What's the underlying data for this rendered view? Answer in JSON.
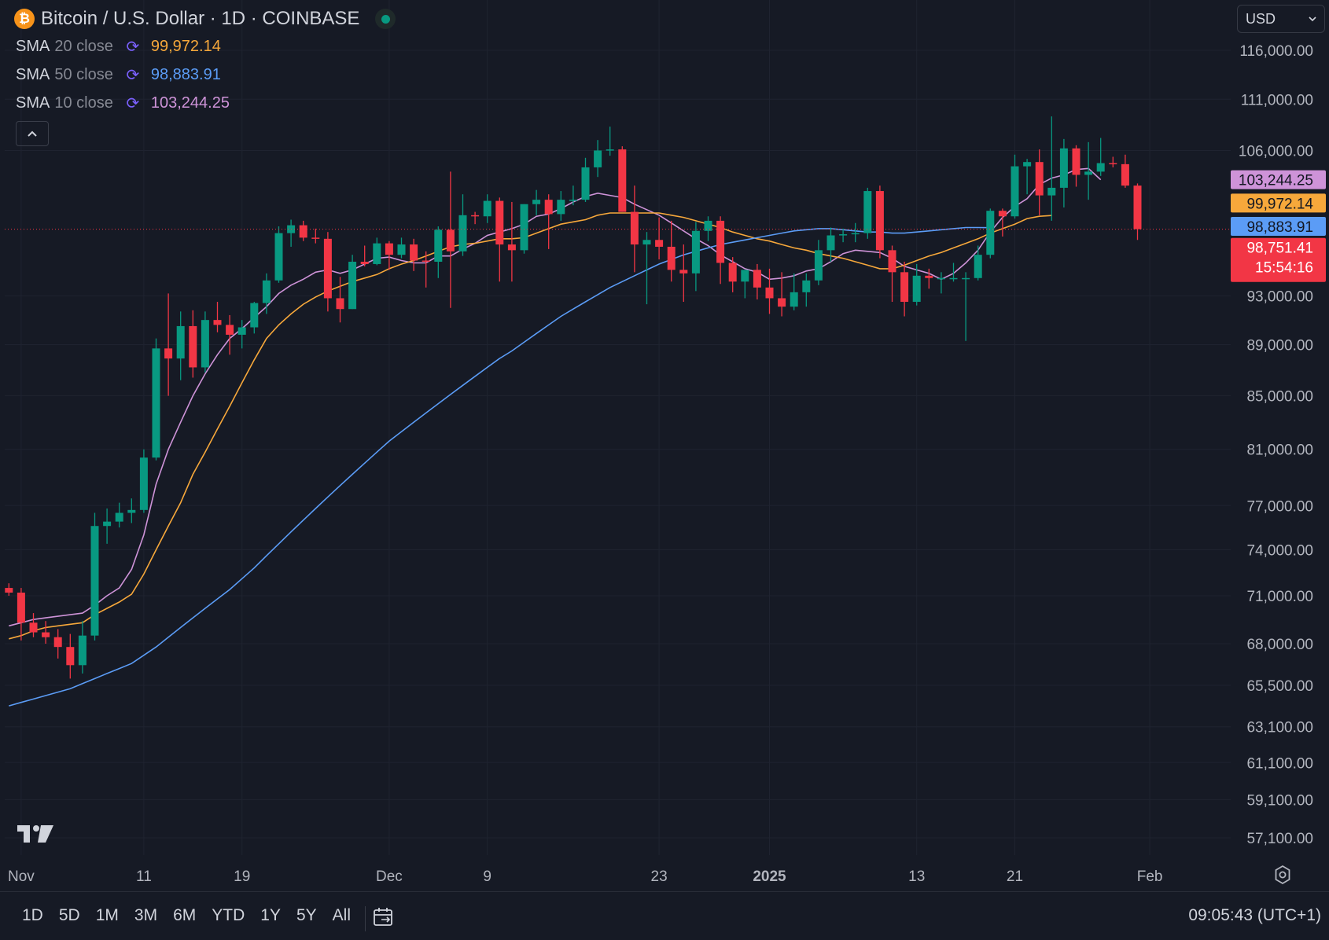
{
  "header": {
    "symbol_icon": "bitcoin-icon",
    "title": "Bitcoin / U.S. Dollar · 1D · COINBASE",
    "status_icon": "market-open-dot"
  },
  "legend": [
    {
      "name": "SMA",
      "params": "20 close",
      "value": "99,972.14",
      "color": "#f7a83b"
    },
    {
      "name": "SMA",
      "params": "50 close",
      "value": "98,883.91",
      "color": "#5b9cf6"
    },
    {
      "name": "SMA",
      "params": "10 close",
      "value": "103,244.25",
      "color": "#ce93d8"
    }
  ],
  "collapse_icon": "chevron-up-icon",
  "currency": {
    "label": "USD",
    "icon": "chevron-down-icon"
  },
  "bottom_bar": {
    "ranges": [
      "1D",
      "5D",
      "1M",
      "3M",
      "6M",
      "YTD",
      "1Y",
      "5Y",
      "All"
    ],
    "calendar_icon": "goto-date-icon",
    "time": "09:05:43 (UTC+1)"
  },
  "settings_icon": "gear-icon",
  "chart_data": {
    "type": "candlestick",
    "title": "Bitcoin / U.S. Dollar · 1D · COINBASE",
    "y_axis_position": "right",
    "y_scale": "log",
    "ylim": [
      55700,
      121000
    ],
    "y_ticks": [
      "116,000.00",
      "111,000.00",
      "106,000.00",
      "93,000.00",
      "89,000.00",
      "85,000.00",
      "81,000.00",
      "77,000.00",
      "74,000.00",
      "71,000.00",
      "68,000.00",
      "65,500.00",
      "63,100.00",
      "61,100.00",
      "59,100.00",
      "57,100.00"
    ],
    "x_labels": [
      {
        "label": "Nov",
        "index": 1
      },
      {
        "label": "11",
        "index": 11
      },
      {
        "label": "19",
        "index": 19
      },
      {
        "label": "Dec",
        "index": 31
      },
      {
        "label": "9",
        "index": 39
      },
      {
        "label": "23",
        "index": 53
      },
      {
        "label": "2025",
        "index": 62,
        "bold": true
      },
      {
        "label": "13",
        "index": 74
      },
      {
        "label": "21",
        "index": 82
      },
      {
        "label": "Feb",
        "index": 93
      }
    ],
    "candles": [
      {
        "o": 71500,
        "h": 71800,
        "l": 71000,
        "c": 71200
      },
      {
        "o": 71200,
        "h": 71500,
        "l": 68200,
        "c": 69300
      },
      {
        "o": 69300,
        "h": 69900,
        "l": 68400,
        "c": 68700
      },
      {
        "o": 68700,
        "h": 69400,
        "l": 68000,
        "c": 68400
      },
      {
        "o": 68400,
        "h": 68900,
        "l": 67100,
        "c": 67800
      },
      {
        "o": 67800,
        "h": 68600,
        "l": 65900,
        "c": 66700
      },
      {
        "o": 66700,
        "h": 69400,
        "l": 66200,
        "c": 68500
      },
      {
        "o": 68500,
        "h": 76500,
        "l": 68200,
        "c": 75600
      },
      {
        "o": 75600,
        "h": 76800,
        "l": 74400,
        "c": 75900
      },
      {
        "o": 75900,
        "h": 77200,
        "l": 75500,
        "c": 76500
      },
      {
        "o": 76500,
        "h": 77500,
        "l": 75800,
        "c": 76700
      },
      {
        "o": 76700,
        "h": 81000,
        "l": 76500,
        "c": 80400
      },
      {
        "o": 80400,
        "h": 89500,
        "l": 80200,
        "c": 88700
      },
      {
        "o": 88700,
        "h": 93200,
        "l": 85000,
        "c": 87900
      },
      {
        "o": 87900,
        "h": 91700,
        "l": 86200,
        "c": 90500
      },
      {
        "o": 90500,
        "h": 91800,
        "l": 86400,
        "c": 87200
      },
      {
        "o": 87200,
        "h": 91700,
        "l": 86800,
        "c": 91000
      },
      {
        "o": 91000,
        "h": 92500,
        "l": 90000,
        "c": 90600
      },
      {
        "o": 90600,
        "h": 91400,
        "l": 88200,
        "c": 89800
      },
      {
        "o": 89800,
        "h": 91000,
        "l": 88700,
        "c": 90400
      },
      {
        "o": 90400,
        "h": 92500,
        "l": 89900,
        "c": 92400
      },
      {
        "o": 92400,
        "h": 94900,
        "l": 91500,
        "c": 94300
      },
      {
        "o": 94300,
        "h": 99000,
        "l": 94100,
        "c": 98400
      },
      {
        "o": 98400,
        "h": 99600,
        "l": 97200,
        "c": 99100
      },
      {
        "o": 99100,
        "h": 99500,
        "l": 97700,
        "c": 98000
      },
      {
        "o": 98000,
        "h": 98800,
        "l": 97500,
        "c": 97900
      },
      {
        "o": 97900,
        "h": 98500,
        "l": 91700,
        "c": 92800
      },
      {
        "o": 92800,
        "h": 94600,
        "l": 90800,
        "c": 91900
      },
      {
        "o": 91900,
        "h": 96500,
        "l": 91900,
        "c": 95900
      },
      {
        "o": 95900,
        "h": 97300,
        "l": 95500,
        "c": 95700
      },
      {
        "o": 95700,
        "h": 98000,
        "l": 95600,
        "c": 97500
      },
      {
        "o": 97500,
        "h": 97700,
        "l": 95200,
        "c": 96500
      },
      {
        "o": 96500,
        "h": 98000,
        "l": 96200,
        "c": 97400
      },
      {
        "o": 97400,
        "h": 97900,
        "l": 95100,
        "c": 96000
      },
      {
        "o": 96000,
        "h": 96800,
        "l": 93700,
        "c": 95900
      },
      {
        "o": 95900,
        "h": 99000,
        "l": 94500,
        "c": 98700
      },
      {
        "o": 98700,
        "h": 104000,
        "l": 92000,
        "c": 96800
      },
      {
        "o": 96800,
        "h": 101900,
        "l": 96400,
        "c": 100000
      },
      {
        "o": 100000,
        "h": 100300,
        "l": 99200,
        "c": 99900
      },
      {
        "o": 99900,
        "h": 101900,
        "l": 99300,
        "c": 101300
      },
      {
        "o": 101300,
        "h": 101600,
        "l": 94200,
        "c": 97400
      },
      {
        "o": 97400,
        "h": 101200,
        "l": 94200,
        "c": 96900
      },
      {
        "o": 96900,
        "h": 101000,
        "l": 96600,
        "c": 101000
      },
      {
        "o": 101000,
        "h": 102300,
        "l": 100000,
        "c": 101400
      },
      {
        "o": 101400,
        "h": 101900,
        "l": 97000,
        "c": 100100
      },
      {
        "o": 100100,
        "h": 102200,
        "l": 99500,
        "c": 101400
      },
      {
        "o": 101400,
        "h": 102700,
        "l": 100900,
        "c": 101400
      },
      {
        "o": 101400,
        "h": 105300,
        "l": 101200,
        "c": 104400
      },
      {
        "o": 104400,
        "h": 107000,
        "l": 103500,
        "c": 106000
      },
      {
        "o": 106000,
        "h": 108300,
        "l": 105500,
        "c": 106100
      },
      {
        "o": 106100,
        "h": 106400,
        "l": 100300,
        "c": 100300
      },
      {
        "o": 100300,
        "h": 102700,
        "l": 95000,
        "c": 97400
      },
      {
        "o": 97400,
        "h": 98500,
        "l": 92300,
        "c": 97800
      },
      {
        "o": 97800,
        "h": 99800,
        "l": 96100,
        "c": 97200
      },
      {
        "o": 97200,
        "h": 99500,
        "l": 94200,
        "c": 95200
      },
      {
        "o": 95200,
        "h": 97400,
        "l": 92500,
        "c": 94900
      },
      {
        "o": 94900,
        "h": 99400,
        "l": 93400,
        "c": 98600
      },
      {
        "o": 98600,
        "h": 99900,
        "l": 97700,
        "c": 99500
      },
      {
        "o": 99500,
        "h": 99900,
        "l": 94000,
        "c": 95800
      },
      {
        "o": 95800,
        "h": 96300,
        "l": 93300,
        "c": 94200
      },
      {
        "o": 94200,
        "h": 95200,
        "l": 92800,
        "c": 95200
      },
      {
        "o": 95200,
        "h": 95700,
        "l": 92700,
        "c": 93700
      },
      {
        "o": 93700,
        "h": 95300,
        "l": 91500,
        "c": 92800
      },
      {
        "o": 92800,
        "h": 95000,
        "l": 91300,
        "c": 92100
      },
      {
        "o": 92100,
        "h": 94900,
        "l": 91800,
        "c": 93300
      },
      {
        "o": 93300,
        "h": 94900,
        "l": 92100,
        "c": 94300
      },
      {
        "o": 94300,
        "h": 97800,
        "l": 93900,
        "c": 96900
      },
      {
        "o": 96900,
        "h": 98900,
        "l": 95900,
        "c": 98200
      },
      {
        "o": 98200,
        "h": 98800,
        "l": 97600,
        "c": 98300
      },
      {
        "o": 98300,
        "h": 99300,
        "l": 97600,
        "c": 98400
      },
      {
        "o": 98400,
        "h": 102500,
        "l": 97900,
        "c": 102200
      },
      {
        "o": 102200,
        "h": 102700,
        "l": 96200,
        "c": 96900
      },
      {
        "o": 96900,
        "h": 97300,
        "l": 92500,
        "c": 95000
      },
      {
        "o": 95000,
        "h": 95900,
        "l": 91300,
        "c": 92500
      },
      {
        "o": 92500,
        "h": 95700,
        "l": 92200,
        "c": 94700
      },
      {
        "o": 94700,
        "h": 95300,
        "l": 93600,
        "c": 94500
      },
      {
        "o": 94500,
        "h": 95000,
        "l": 93200,
        "c": 94500
      },
      {
        "o": 94500,
        "h": 95800,
        "l": 94200,
        "c": 94500
      },
      {
        "o": 94500,
        "h": 95000,
        "l": 89300,
        "c": 94500
      },
      {
        "o": 94500,
        "h": 97300,
        "l": 94300,
        "c": 96500
      },
      {
        "o": 96500,
        "h": 100600,
        "l": 96200,
        "c": 100400
      },
      {
        "o": 100400,
        "h": 100600,
        "l": 98100,
        "c": 99900
      },
      {
        "o": 99900,
        "h": 105600,
        "l": 99700,
        "c": 104500
      },
      {
        "o": 104500,
        "h": 105200,
        "l": 101900,
        "c": 104900
      },
      {
        "o": 104900,
        "h": 106100,
        "l": 100000,
        "c": 101800
      },
      {
        "o": 101800,
        "h": 109300,
        "l": 99500,
        "c": 102500
      },
      {
        "o": 102500,
        "h": 107100,
        "l": 100700,
        "c": 106200
      },
      {
        "o": 106200,
        "h": 106500,
        "l": 102600,
        "c": 103700
      },
      {
        "o": 103700,
        "h": 106800,
        "l": 101400,
        "c": 104000
      },
      {
        "o": 104000,
        "h": 107200,
        "l": 103600,
        "c": 104800
      },
      {
        "o": 104800,
        "h": 105400,
        "l": 104400,
        "c": 104700
      },
      {
        "o": 104700,
        "h": 105600,
        "l": 102500,
        "c": 102700
      },
      {
        "o": 102700,
        "h": 102900,
        "l": 97800,
        "c": 98751.41
      }
    ],
    "series": [
      {
        "name": "SMA 10 close",
        "color": "#ce93d8",
        "start_index": 0,
        "values": [
          69100,
          69300,
          69500,
          69600,
          69700,
          69800,
          69900,
          70400,
          71000,
          71500,
          72700,
          75000,
          78500,
          81000,
          83000,
          85000,
          86700,
          88200,
          89500,
          90300,
          91200,
          92100,
          93200,
          93900,
          94400,
          95000,
          95200,
          94900,
          95200,
          95700,
          96200,
          96300,
          96000,
          95800,
          95800,
          96400,
          96400,
          97000,
          97500,
          98200,
          98500,
          98800,
          99200,
          99900,
          100100,
          100600,
          101200,
          101700,
          102000,
          101800,
          101600,
          101000,
          100500,
          100000,
          99300,
          98600,
          97900,
          97300,
          96500,
          95900,
          95300,
          95000,
          94400,
          94500,
          94700,
          95100,
          95300,
          95900,
          96600,
          96900,
          96800,
          96700,
          96200,
          95500,
          95200,
          94900,
          94400,
          94900,
          95800,
          96900,
          98500,
          99800,
          100800,
          101500,
          102800,
          103400,
          103700,
          104200,
          104300,
          103244.25
        ]
      },
      {
        "name": "SMA 20 close",
        "color": "#f7a83b",
        "start_index": 0,
        "values": [
          68300,
          68500,
          68800,
          69000,
          69100,
          69200,
          69300,
          69800,
          70200,
          70600,
          71100,
          72400,
          74000,
          75600,
          77200,
          79200,
          80800,
          82500,
          84200,
          86000,
          87800,
          89500,
          90600,
          91500,
          92300,
          92900,
          93400,
          93800,
          94200,
          94500,
          94800,
          95300,
          95700,
          96000,
          96400,
          96800,
          97200,
          97400,
          97500,
          97700,
          97900,
          97900,
          98000,
          98400,
          98800,
          99200,
          99400,
          99600,
          100000,
          100200,
          100200,
          100200,
          100200,
          100200,
          100000,
          99800,
          99500,
          99200,
          98900,
          98500,
          98200,
          97900,
          97700,
          97400,
          97100,
          96900,
          96600,
          96400,
          96200,
          95900,
          95600,
          95300,
          95300,
          95600,
          96000,
          96400,
          96700,
          97100,
          97500,
          97900,
          98400,
          98800,
          99200,
          99700,
          99900,
          99972.14
        ]
      },
      {
        "name": "SMA 50 close",
        "color": "#5b9cf6",
        "start_index": 0,
        "values": [
          64300,
          64500,
          64700,
          64900,
          65100,
          65300,
          65600,
          65900,
          66200,
          66500,
          66800,
          67300,
          67800,
          68400,
          69000,
          69600,
          70200,
          70800,
          71400,
          72100,
          72800,
          73600,
          74400,
          75200,
          76000,
          76800,
          77600,
          78400,
          79200,
          80000,
          80800,
          81600,
          82300,
          83000,
          83700,
          84400,
          85100,
          85800,
          86500,
          87200,
          87900,
          88500,
          89200,
          89900,
          90600,
          91300,
          91900,
          92500,
          93100,
          93700,
          94200,
          94700,
          95200,
          95700,
          96100,
          96500,
          96800,
          97100,
          97400,
          97600,
          97800,
          98000,
          98200,
          98400,
          98600,
          98700,
          98800,
          98800,
          98700,
          98600,
          98500,
          98500,
          98400,
          98400,
          98500,
          98600,
          98700,
          98800,
          98900,
          98900,
          98883.91
        ]
      }
    ],
    "price_labels": [
      {
        "value": 103244.25,
        "text": "103,244.25",
        "bg": "#ce93d8",
        "fg": "#131722",
        "y": 103244.25
      },
      {
        "value": 99972.14,
        "text": "99,972.14",
        "bg": "#f7a83b",
        "fg": "#131722",
        "y": 101100
      },
      {
        "value": 98883.91,
        "text": "98,883.91",
        "bg": "#5b9cf6",
        "fg": "#131722",
        "y": 99000
      },
      {
        "value": 98751.41,
        "text": "98,751.41",
        "bg": "#f23645",
        "fg": "#ffffff",
        "y": 97150,
        "sub": "15:54:16"
      }
    ],
    "last_price_line": 98751.41,
    "up_color": "#089981",
    "down_color": "#f23645",
    "grid": true
  }
}
